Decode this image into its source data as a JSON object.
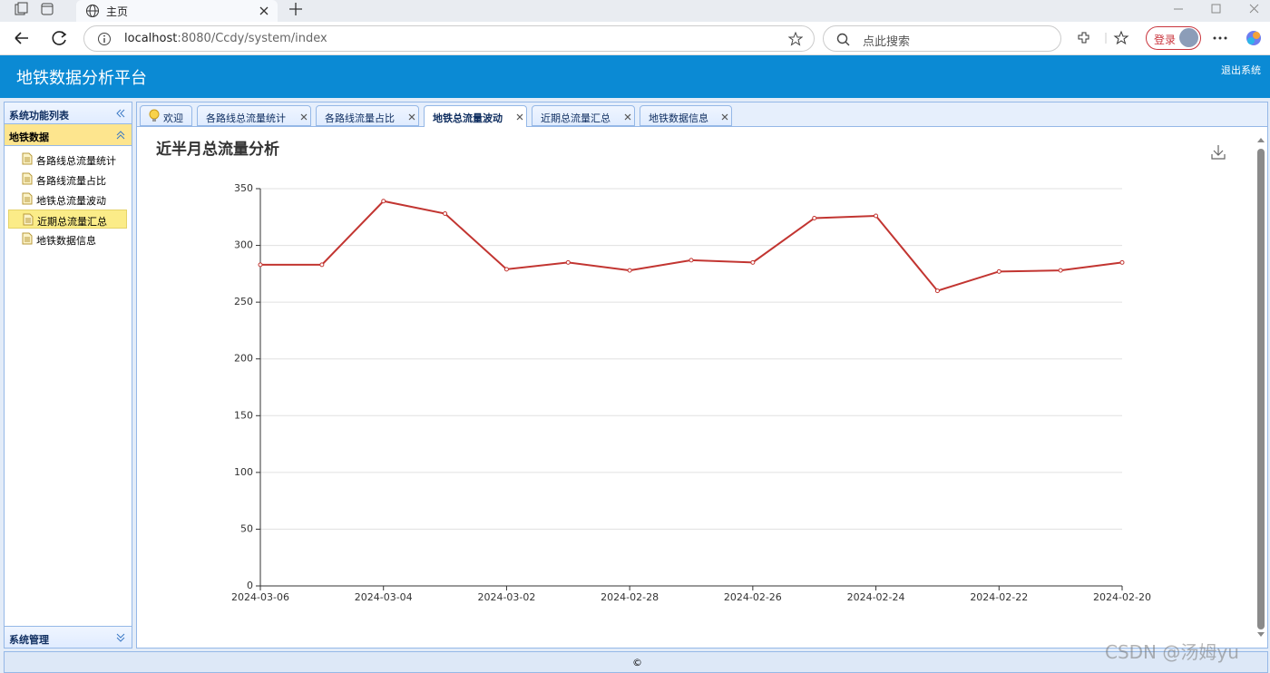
{
  "browser": {
    "tab_title": "主页",
    "url_host": "localhost",
    "url_path": ":8080/Ccdy/system/index",
    "search_placeholder": "点此搜索",
    "login": "登录"
  },
  "header": {
    "title": "地铁数据分析平台",
    "logout": "退出系统"
  },
  "sidebar": {
    "title": "系统功能列表",
    "groups": [
      {
        "label": "地铁数据",
        "items": [
          {
            "label": "各路线总流量统计"
          },
          {
            "label": "各路线流量占比"
          },
          {
            "label": "地铁总流量波动"
          },
          {
            "label": "近期总流量汇总",
            "selected": true
          },
          {
            "label": "地铁数据信息"
          }
        ]
      },
      {
        "label": "系统管理"
      }
    ]
  },
  "tabs": [
    {
      "label": "欢迎"
    },
    {
      "label": "各路线总流量统计"
    },
    {
      "label": "各路线流量占比"
    },
    {
      "label": "地铁总流量波动",
      "active": true
    },
    {
      "label": "近期总流量汇总"
    },
    {
      "label": "地铁数据信息"
    }
  ],
  "footer": "©",
  "watermark": "CSDN @汤姆yu",
  "chart_data": {
    "type": "line",
    "title": "近半月总流量分析",
    "categories": [
      "2024-03-06",
      null,
      "2024-03-04",
      null,
      "2024-03-02",
      null,
      "2024-02-28",
      null,
      "2024-02-26",
      null,
      "2024-02-24",
      null,
      "2024-02-22",
      null,
      "2024-02-20"
    ],
    "values": [
      283,
      283,
      339,
      328,
      279,
      285,
      278,
      287,
      285,
      324,
      326,
      260,
      277,
      278,
      285
    ],
    "color": "#c23531",
    "ylim": [
      0,
      350
    ],
    "yticks": [
      0,
      50,
      100,
      150,
      200,
      250,
      300,
      350
    ],
    "grid": true
  }
}
